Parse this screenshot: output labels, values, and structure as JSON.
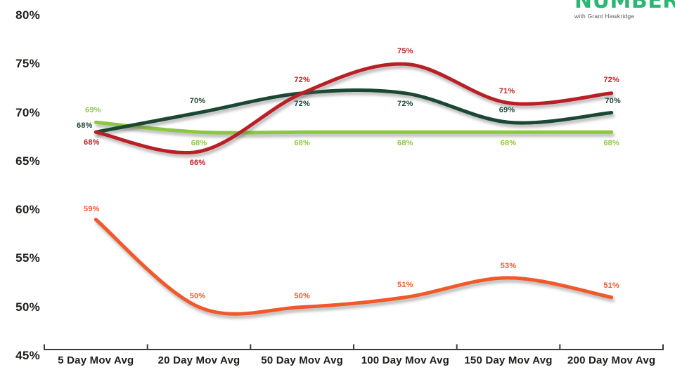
{
  "logo": {
    "text": "NUMBER",
    "subtext": "with Grant Hawkridge",
    "color": "#2bb673",
    "subtext_color": "#58595b"
  },
  "chart_data": {
    "type": "line",
    "title": "",
    "xlabel": "",
    "ylabel": "",
    "categories": [
      "5 Day Mov Avg",
      "20 Day Mov Avg",
      "50 Day Mov Avg",
      "100 Day Mov Avg",
      "150 Day Mov Avg",
      "200 Day Mov Avg"
    ],
    "yticks": [
      "80%",
      "75%",
      "70%",
      "65%",
      "60%",
      "55%",
      "50%",
      "45%"
    ],
    "ytick_values": [
      80,
      75,
      70,
      65,
      60,
      55,
      50,
      45
    ],
    "ylim": [
      45,
      80
    ],
    "grid": false,
    "legend_position": "none",
    "axis_color": "#3a3a3a",
    "series": [
      {
        "name": "orange-line",
        "color": "#f1582a",
        "values": [
          59,
          50,
          50,
          51,
          53,
          51
        ],
        "labels": [
          "59%",
          "50%",
          "50%",
          "51%",
          "53%",
          "51%"
        ],
        "label_offsets": [
          [
            -6,
            -15
          ],
          [
            -2,
            -16
          ],
          [
            0,
            -16
          ],
          [
            0,
            -18
          ],
          [
            0,
            -17
          ],
          [
            0,
            -17
          ]
        ]
      },
      {
        "name": "light-green-line",
        "color": "#8dc63f",
        "values": [
          69,
          68,
          68,
          68,
          68,
          68
        ],
        "labels": [
          "69%",
          "68%",
          "68%",
          "68%",
          "68%",
          "68%"
        ],
        "label_offsets": [
          [
            -4,
            -17
          ],
          [
            0,
            16
          ],
          [
            0,
            16
          ],
          [
            0,
            16
          ],
          [
            0,
            16
          ],
          [
            0,
            16
          ]
        ]
      },
      {
        "name": "dark-green-line",
        "color": "#1b4733",
        "values": [
          68,
          70,
          72,
          72,
          69,
          70
        ],
        "labels": [
          "68%",
          "70%",
          "72%",
          "72%",
          "69%",
          "70%"
        ],
        "label_offsets": [
          [
            -16,
            -9
          ],
          [
            -2,
            -17
          ],
          [
            0,
            15
          ],
          [
            0,
            15
          ],
          [
            -2,
            -17
          ],
          [
            2,
            -17
          ]
        ]
      },
      {
        "name": "dark-red-line",
        "color": "#b92025",
        "values": [
          68,
          66,
          72,
          75,
          71,
          72
        ],
        "labels": [
          "68%",
          "66%",
          "72%",
          "75%",
          "71%",
          "72%"
        ],
        "label_offsets": [
          [
            -6,
            15
          ],
          [
            -2,
            16
          ],
          [
            0,
            -19
          ],
          [
            0,
            -18
          ],
          [
            -2,
            -17
          ],
          [
            0,
            -19
          ]
        ]
      }
    ]
  }
}
